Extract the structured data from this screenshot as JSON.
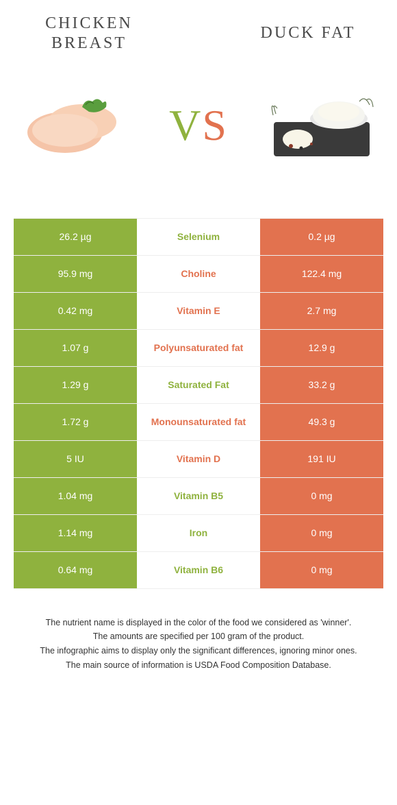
{
  "colors": {
    "left": "#8fb23e",
    "right": "#e2724f",
    "text_dark": "#4a4a4a",
    "white": "#ffffff"
  },
  "header": {
    "left_title": "Chicken Breast",
    "right_title": "Duck Fat",
    "vs_v": "V",
    "vs_s": "S"
  },
  "table": {
    "rows": [
      {
        "left": "26.2 µg",
        "label": "Selenium",
        "right": "0.2 µg",
        "winner": "left"
      },
      {
        "left": "95.9 mg",
        "label": "Choline",
        "right": "122.4 mg",
        "winner": "right"
      },
      {
        "left": "0.42 mg",
        "label": "Vitamin E",
        "right": "2.7 mg",
        "winner": "right"
      },
      {
        "left": "1.07 g",
        "label": "Polyunsaturated fat",
        "right": "12.9 g",
        "winner": "right"
      },
      {
        "left": "1.29 g",
        "label": "Saturated Fat",
        "right": "33.2 g",
        "winner": "left"
      },
      {
        "left": "1.72 g",
        "label": "Monounsaturated fat",
        "right": "49.3 g",
        "winner": "right"
      },
      {
        "left": "5 IU",
        "label": "Vitamin D",
        "right": "191 IU",
        "winner": "right"
      },
      {
        "left": "1.04 mg",
        "label": "Vitamin B5",
        "right": "0 mg",
        "winner": "left"
      },
      {
        "left": "1.14 mg",
        "label": "Iron",
        "right": "0 mg",
        "winner": "left"
      },
      {
        "left": "0.64 mg",
        "label": "Vitamin B6",
        "right": "0 mg",
        "winner": "left"
      }
    ]
  },
  "footer": {
    "line1": "The nutrient name is displayed in the color of the food we considered as 'winner'.",
    "line2": "The amounts are specified per 100 gram of the product.",
    "line3": "The infographic aims to display only the significant differences, ignoring minor ones.",
    "line4": "The main source of information is USDA Food Composition Database."
  }
}
